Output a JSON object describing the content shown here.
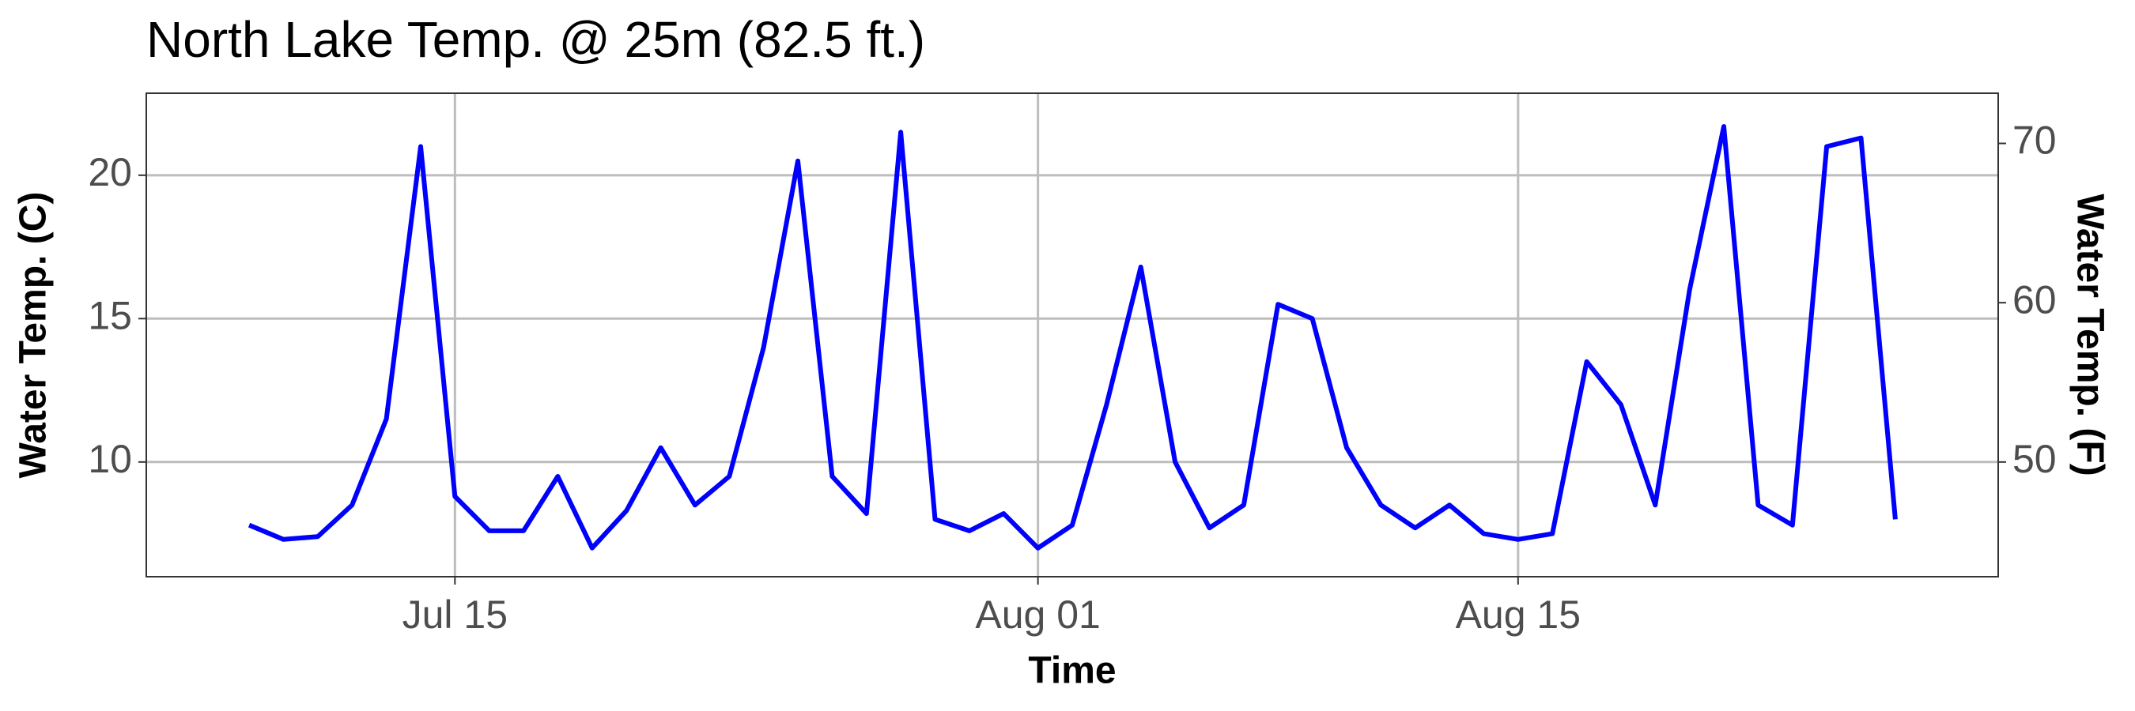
{
  "chart_data": {
    "type": "line",
    "title": "North Lake Temp. @ 25m (82.5 ft.)",
    "x_label": "Time",
    "y_label": "Water Temp. (C)",
    "y2_label": "Water Temp. (F)",
    "x": [
      "Jul 09",
      "Jul 10",
      "Jul 11",
      "Jul 12",
      "Jul 13",
      "Jul 14",
      "Jul 15",
      "Jul 16",
      "Jul 17",
      "Jul 18",
      "Jul 19",
      "Jul 20",
      "Jul 21",
      "Jul 22",
      "Jul 23",
      "Jul 24",
      "Jul 25",
      "Jul 26",
      "Jul 27",
      "Jul 28",
      "Jul 29",
      "Jul 30",
      "Jul 31",
      "Aug 01",
      "Aug 02",
      "Aug 03",
      "Aug 04",
      "Aug 05",
      "Aug 06",
      "Aug 07",
      "Aug 08",
      "Aug 09",
      "Aug 10",
      "Aug 11",
      "Aug 12",
      "Aug 13",
      "Aug 14",
      "Aug 15",
      "Aug 16",
      "Aug 17",
      "Aug 18",
      "Aug 19",
      "Aug 20",
      "Aug 21",
      "Aug 22",
      "Aug 23",
      "Aug 24",
      "Aug 25",
      "Aug 26"
    ],
    "series": [
      {
        "name": "Water Temp. (C)",
        "color": "#0000ff",
        "values": [
          7.8,
          7.3,
          7.4,
          8.5,
          11.5,
          21.0,
          8.8,
          7.6,
          7.6,
          9.5,
          7.0,
          8.3,
          10.5,
          8.5,
          9.5,
          14.0,
          20.5,
          9.5,
          8.2,
          21.5,
          8.0,
          7.6,
          8.2,
          7.0,
          7.8,
          12.0,
          16.8,
          10.0,
          7.7,
          8.5,
          15.5,
          15.0,
          10.5,
          8.5,
          7.7,
          8.5,
          7.5,
          7.3,
          7.5,
          13.5,
          12.0,
          8.5,
          16.0,
          21.7,
          8.5,
          7.8,
          21.0,
          21.3,
          8.0
        ]
      }
    ],
    "xlim": [
      "Jul 06",
      "Aug 29"
    ],
    "xticks": [
      "Jul 15",
      "Aug 01",
      "Aug 15"
    ],
    "ylim": [
      6.0,
      22.86
    ],
    "yticks": [
      10,
      15,
      20
    ],
    "y2lim": [
      42.8,
      73.15
    ],
    "y2ticks": [
      50,
      60,
      70
    ],
    "grid": true
  }
}
